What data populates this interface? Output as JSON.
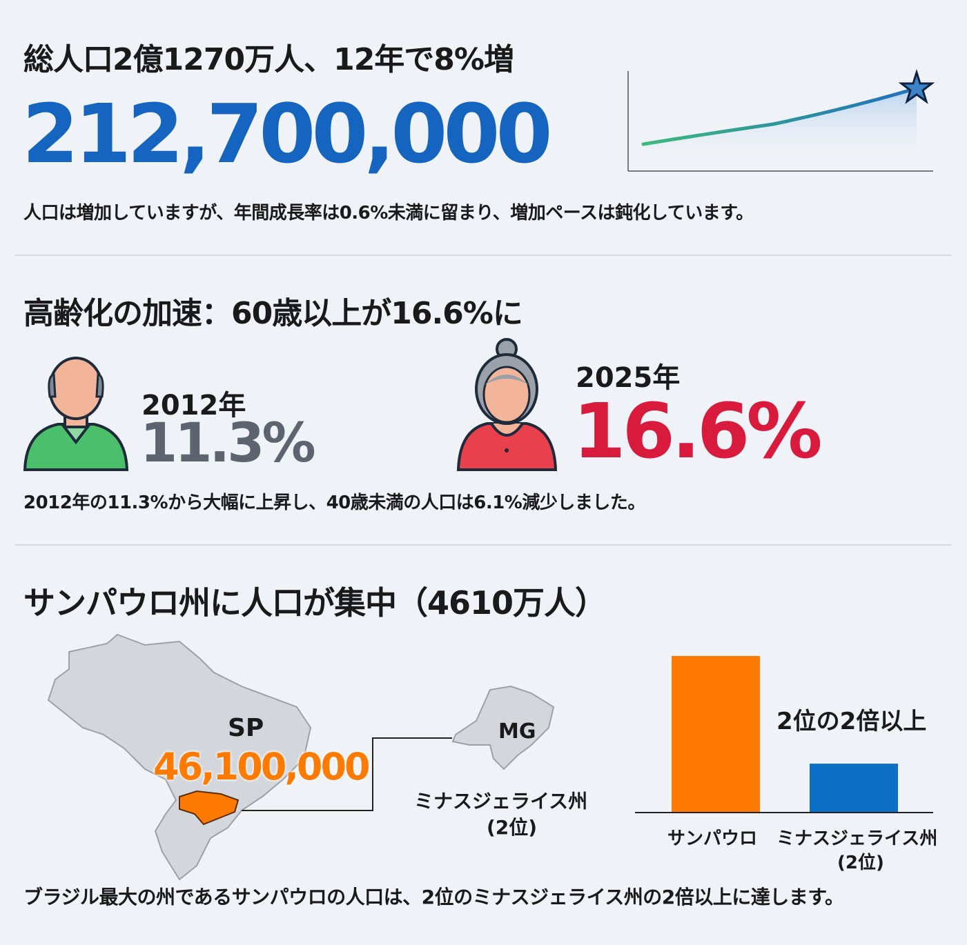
{
  "section1": {
    "title": "総人口2億1270万人、12年で8%増",
    "big_number": "212,700,000",
    "description": "人口は増加していますが、年間成長率は0.6%未満に留まり、増加ペースは鈍化しています。",
    "trend_icon": "star-icon"
  },
  "section2": {
    "title": "高齢化の加速：60歳以上が16.6%に",
    "before": {
      "year": "2012年",
      "value": "11.3%",
      "icon": "elderly-man-icon"
    },
    "after": {
      "year": "2025年",
      "value": "16.6%",
      "icon": "elderly-woman-icon"
    },
    "description": "2012年の11.3%から大幅に上昇し、40歳未満の人口は6.1%減少しました。"
  },
  "section3": {
    "title": "サンパウロ州に人口が集中（4610万人）",
    "map": {
      "sp_label": "SP",
      "sp_value": "46,100,000",
      "mg_label": "MG",
      "mg_name": "ミナスジェライス州",
      "mg_rank": "(2位)"
    },
    "annotation": "2位の2倍以上",
    "description": "ブラジル最大の州であるサンパウロの人口は、2位のミナスジェライス州の2倍以上に達します。"
  },
  "colors": {
    "blue": "#1565c0",
    "red": "#d81b3c",
    "orange": "#ff7a00",
    "gray": "#5d6470",
    "bar_blue": "#0b6fc6"
  },
  "chart_data": {
    "type": "bar",
    "categories": [
      "サンパウロ",
      "ミナスジェライス州"
    ],
    "category_sublabels": [
      "",
      "(2位)"
    ],
    "values": [
      46.1,
      14.4
    ],
    "colors": [
      "#ff7a00",
      "#0b6fc6"
    ],
    "grid": false
  }
}
